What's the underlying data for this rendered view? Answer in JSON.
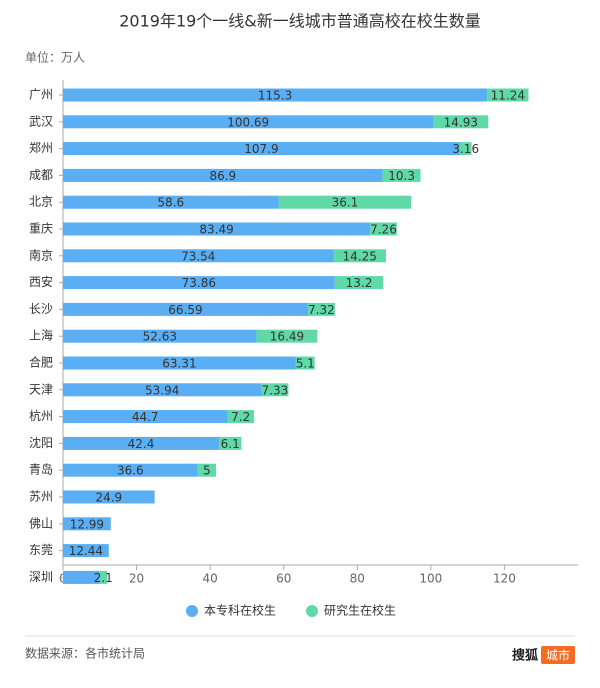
{
  "chart_data": {
    "type": "stacked-barh",
    "title": "2019年19个一线&新一线城市普通高校在校生数量",
    "subtitle": "单位：万人",
    "source": "数据来源：各市统计局",
    "logo": {
      "brand": "搜狐",
      "badge": "城市"
    },
    "categories": [
      "广州",
      "武汉",
      "郑州",
      "成都",
      "北京",
      "重庆",
      "南京",
      "西安",
      "长沙",
      "上海",
      "合肥",
      "天津",
      "杭州",
      "沈阳",
      "青岛",
      "苏州",
      "佛山",
      "东莞",
      "深圳"
    ],
    "series": [
      {
        "name": "本专科在校生",
        "color": "#5aaef4",
        "values": [
          115.3,
          100.69,
          107.9,
          86.9,
          58.6,
          83.49,
          73.54,
          73.86,
          66.59,
          52.63,
          63.31,
          53.94,
          44.7,
          42.4,
          36.6,
          24.9,
          12.99,
          12.44,
          9.9
        ],
        "value_labels": [
          "115.3",
          "100.69",
          "107.9",
          "86.9",
          "58.6",
          "83.49",
          "73.54",
          "73.86",
          "66.59",
          "52.63",
          "63.31",
          "53.94",
          "44.7",
          "42.4",
          "36.6",
          "24.9",
          "12.99",
          "12.44",
          null
        ]
      },
      {
        "name": "研究生在校生",
        "color": "#5fd9a8",
        "values": [
          11.24,
          14.93,
          3.16,
          10.3,
          36.1,
          7.26,
          14.25,
          13.2,
          7.32,
          16.49,
          5.1,
          7.33,
          7.2,
          6.1,
          5,
          null,
          null,
          null,
          2.1
        ]
      }
    ],
    "xlim": [
      0,
      140
    ],
    "xticks": [
      0,
      20,
      40,
      60,
      80,
      100,
      120
    ]
  }
}
